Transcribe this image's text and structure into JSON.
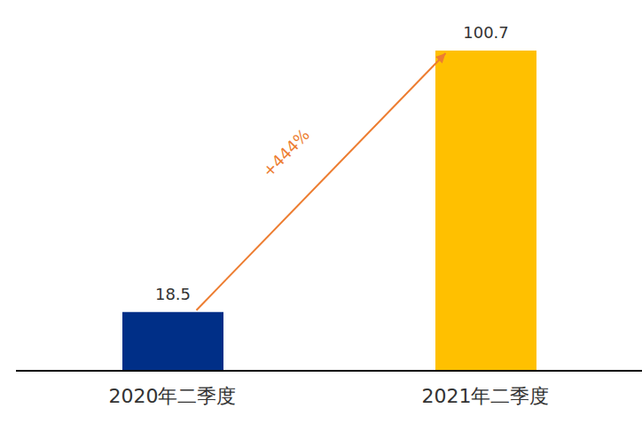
{
  "chart_data": {
    "type": "bar",
    "categories": [
      "2020年二季度",
      "2021年二季度"
    ],
    "values": [
      18.5,
      100.7
    ],
    "colors": [
      "#002f87",
      "#ffc000"
    ],
    "ylim": [
      0,
      100.7
    ],
    "data_labels": true,
    "tick_labels": "x",
    "grid": false,
    "annotations": [
      "+444%"
    ]
  }
}
